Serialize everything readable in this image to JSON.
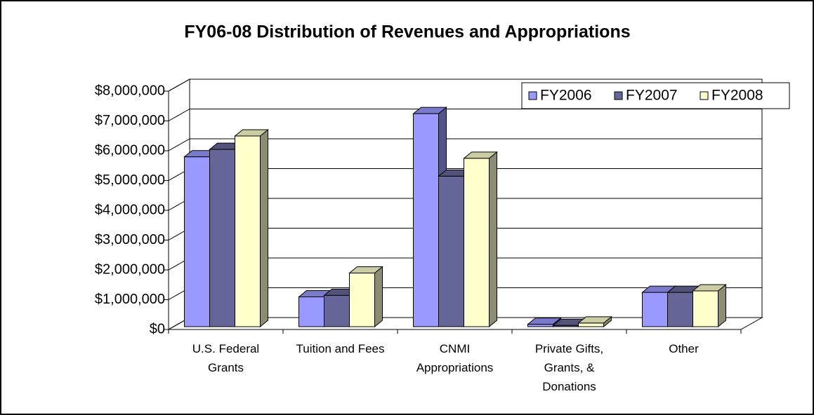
{
  "chart_data": {
    "type": "bar3d",
    "title": "FY06-08 Distribution of Revenues and Appropriations",
    "categories": [
      "U.S. Federal Grants",
      "Tuition and Fees",
      "CNMI Appropriations",
      "Private Gifts, Grants, & Donations",
      "Other"
    ],
    "series": [
      {
        "name": "FY2006",
        "color": "#9999ff",
        "values": [
          5700000,
          1000000,
          7150000,
          80000,
          1150000
        ]
      },
      {
        "name": "FY2007",
        "color": "#666699",
        "values": [
          5950000,
          1050000,
          5050000,
          40000,
          1150000
        ]
      },
      {
        "name": "FY2008",
        "color": "#ffffcc",
        "values": [
          6400000,
          1800000,
          5650000,
          120000,
          1200000
        ]
      }
    ],
    "ylim": [
      0,
      8000000
    ],
    "yticks": [
      {
        "value": 0,
        "label": "$0"
      },
      {
        "value": 1000000,
        "label": "$1,000,000"
      },
      {
        "value": 2000000,
        "label": "$2,000,000"
      },
      {
        "value": 3000000,
        "label": "$3,000,000"
      },
      {
        "value": 4000000,
        "label": "$4,000,000"
      },
      {
        "value": 5000000,
        "label": "$5,000,000"
      },
      {
        "value": 6000000,
        "label": "$6,000,000"
      },
      {
        "value": 7000000,
        "label": "$7,000,000"
      },
      {
        "value": 8000000,
        "label": "$8,000,000"
      }
    ],
    "grid": true,
    "legend": "top-right"
  }
}
